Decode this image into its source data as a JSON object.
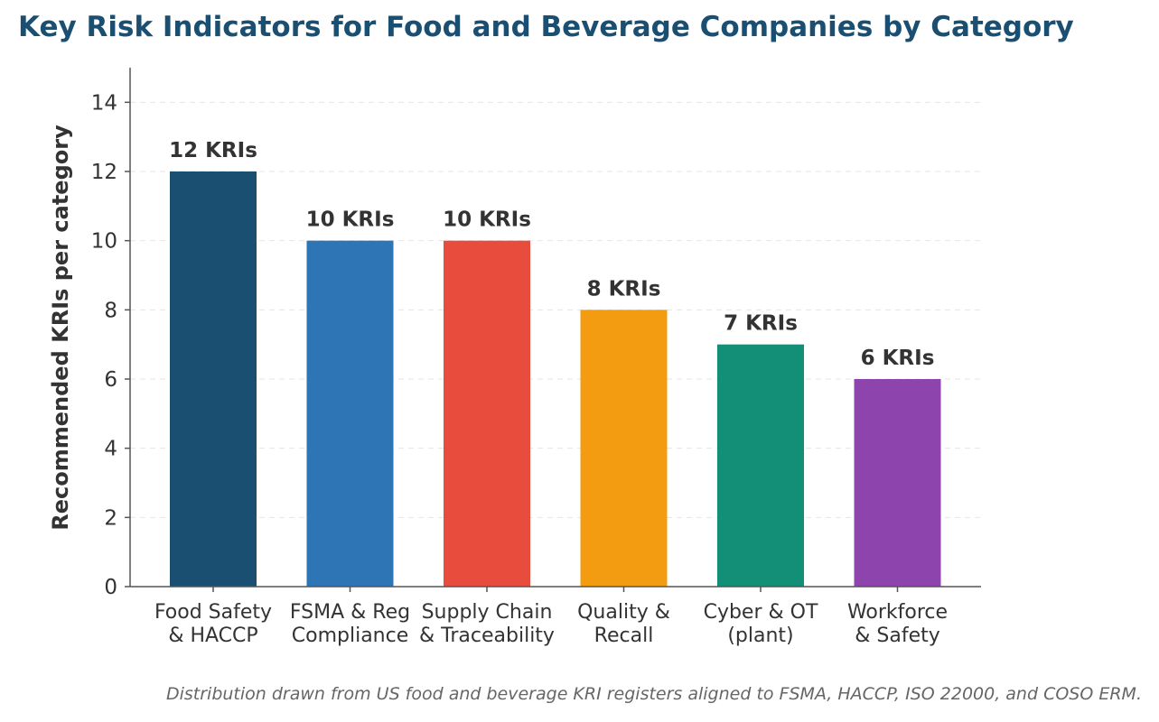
{
  "title": "Key Risk Indicators for Food and Beverage Companies by Category",
  "footnote": "Distribution drawn from US food and beverage KRI registers aligned to FSMA, HACCP, ISO 22000, and COSO ERM.",
  "chart_data": {
    "type": "bar",
    "title": "Key Risk Indicators for Food and Beverage Companies by Category",
    "xlabel": "",
    "ylabel": "Recommended KRIs per category",
    "categories": [
      [
        "Food Safety",
        "& HACCP"
      ],
      [
        "FSMA & Reg",
        "Compliance"
      ],
      [
        "Supply Chain",
        "& Traceability"
      ],
      [
        "Quality &",
        "Recall"
      ],
      [
        "Cyber & OT",
        "(plant)"
      ],
      [
        "Workforce",
        "& Safety"
      ]
    ],
    "values": [
      12,
      10,
      10,
      8,
      7,
      6
    ],
    "data_labels": [
      "12 KRIs",
      "10 KRIs",
      "10 KRIs",
      "8 KRIs",
      "7 KRIs",
      "6 KRIs"
    ],
    "colors": [
      "#1b4f72",
      "#2e75b6",
      "#e74c3c",
      "#f39c12",
      "#148f77",
      "#8e44ad"
    ],
    "ylim": [
      0,
      15
    ],
    "yticks": [
      0,
      2,
      4,
      6,
      8,
      10,
      12,
      14
    ],
    "grid": "horizontal dashed",
    "legend": "none"
  }
}
